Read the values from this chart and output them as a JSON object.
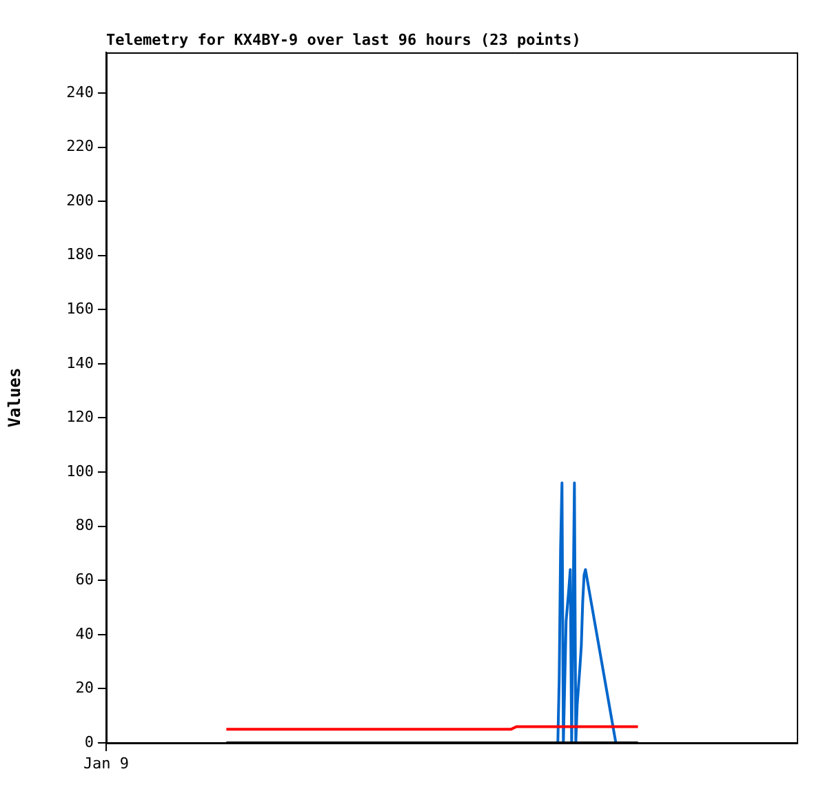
{
  "chart_data": {
    "type": "line",
    "title": "Telemetry for KX4BY-9 over last 96 hours (23 points)",
    "ylabel": "Values",
    "categories": [
      "Jan 9",
      null,
      null,
      null,
      null,
      null,
      null,
      null,
      null,
      null,
      null,
      null,
      null,
      null,
      null,
      null,
      null,
      null,
      null,
      null,
      null,
      null,
      null,
      null,
      null,
      null,
      null,
      null,
      null,
      null,
      null,
      null,
      null,
      null,
      null,
      null,
      null,
      null,
      null,
      null,
      null,
      null,
      null,
      null,
      null,
      null,
      null,
      null,
      null,
      null,
      null,
      null,
      null,
      null,
      null,
      null,
      null,
      null,
      null,
      null,
      null,
      null,
      null,
      null,
      null,
      null,
      null,
      null,
      null,
      null,
      null,
      null,
      null,
      null,
      null,
      null,
      null,
      null,
      null,
      null,
      null,
      null,
      null,
      null,
      null,
      null,
      null,
      null,
      null,
      null,
      null,
      null,
      null,
      null,
      null,
      null,
      null,
      null,
      null,
      null,
      null,
      null,
      null,
      null,
      null,
      null,
      null,
      null,
      null,
      null,
      null,
      null,
      null,
      null,
      null,
      null,
      null,
      null,
      null,
      null,
      null,
      null,
      null,
      null,
      null,
      null,
      null,
      null,
      null,
      null,
      null,
      null,
      null,
      null,
      null,
      null,
      null,
      null,
      null,
      null,
      null,
      null,
      null,
      null,
      null,
      null,
      null,
      null,
      null,
      null,
      null,
      null,
      null,
      null,
      null,
      null,
      null,
      null,
      null,
      null,
      null,
      null,
      null,
      null,
      null,
      null,
      null,
      null,
      null,
      null,
      null,
      null,
      null,
      null,
      null,
      null,
      null,
      null,
      null,
      null,
      null,
      null,
      null,
      null,
      null,
      null,
      null,
      null,
      null,
      null,
      null,
      null,
      null,
      null,
      null,
      null,
      null,
      null,
      null,
      null,
      null,
      null,
      null,
      null,
      null,
      null,
      null,
      null,
      null,
      null,
      null,
      null,
      null,
      null,
      null,
      null,
      null,
      null,
      null,
      null,
      null,
      null,
      null,
      null,
      null,
      null,
      null,
      null,
      null,
      null,
      null,
      null,
      null,
      null,
      null,
      null,
      null,
      null,
      null,
      null,
      null,
      null,
      null,
      null,
      null,
      null,
      null,
      null,
      null,
      null,
      null,
      null,
      null,
      null,
      null,
      null,
      null,
      null,
      null,
      null,
      null,
      null,
      null,
      null,
      null,
      null,
      null,
      null,
      null,
      null,
      null,
      null,
      null,
      null,
      null,
      null,
      null,
      null,
      null,
      null,
      null,
      null,
      null,
      null,
      null,
      null,
      null,
      null,
      null,
      null,
      null,
      null,
      null,
      null,
      null,
      null,
      null,
      null,
      null,
      null,
      null,
      null,
      null,
      null,
      null,
      null,
      null,
      null,
      null,
      null,
      null,
      null,
      null,
      null,
      null,
      null,
      null,
      null,
      null,
      null,
      null,
      null,
      null,
      null,
      null,
      null,
      null,
      null,
      null,
      null,
      null,
      null,
      null,
      null,
      null,
      null,
      null,
      null,
      null,
      null,
      null,
      null,
      null,
      null,
      null,
      null,
      null,
      null,
      null,
      null,
      null,
      null,
      null,
      null,
      null,
      null,
      null,
      null,
      null,
      null,
      null,
      null,
      null,
      null,
      null,
      null,
      null,
      null,
      null,
      null,
      null,
      null,
      null,
      null,
      null,
      null,
      null,
      null,
      null,
      null,
      null,
      null,
      null,
      null,
      null,
      null,
      null,
      null,
      null,
      null,
      null,
      null,
      null,
      null,
      null,
      null,
      null,
      null,
      null,
      null,
      null,
      null,
      null,
      null,
      null,
      null,
      null,
      null,
      null,
      null,
      null,
      null,
      null,
      null,
      null,
      null,
      null,
      null,
      null,
      null,
      null,
      null,
      null,
      null,
      null,
      null,
      null,
      null,
      null,
      null,
      null,
      null,
      null,
      null,
      null,
      null,
      null,
      null,
      null,
      null,
      null,
      null,
      null,
      null,
      null,
      null,
      null,
      null,
      null,
      null,
      null,
      null,
      null,
      null,
      null,
      null,
      null,
      null,
      null,
      null,
      null,
      null,
      null,
      null,
      null,
      null,
      null,
      null,
      null,
      null,
      null,
      null,
      null,
      null,
      null,
      null,
      null,
      null,
      null,
      null,
      null,
      null,
      null,
      null,
      null,
      null,
      null,
      null,
      null,
      null,
      null,
      null,
      null,
      null,
      null,
      null,
      null,
      null,
      null,
      null,
      null
    ],
    "ylim": [
      0,
      255
    ],
    "yticks": [
      0,
      20,
      40,
      60,
      80,
      100,
      120,
      140,
      160,
      180,
      200,
      220,
      240
    ],
    "grid": false,
    "legend": false,
    "marker": "none",
    "line_style": "solid",
    "series": [
      {
        "color": "#000000",
        "values": [
          null,
          null,
          null,
          null,
          null,
          null,
          null,
          null,
          null,
          null,
          null,
          null,
          null,
          null,
          null,
          null,
          null,
          null,
          null,
          null,
          null,
          null,
          null,
          null,
          null,
          null,
          null,
          null,
          null,
          null,
          null,
          null,
          null,
          null,
          null,
          null,
          null,
          null,
          null,
          null,
          null,
          null,
          null,
          null,
          null,
          null,
          null,
          null,
          null,
          null,
          null,
          null,
          null,
          null,
          null,
          null,
          null,
          null,
          null,
          null,
          null,
          null,
          null,
          null,
          null,
          null,
          null,
          null,
          null,
          null,
          null,
          null,
          null,
          null,
          null,
          null,
          null,
          null,
          null,
          null,
          null,
          null,
          null,
          null,
          null,
          null,
          null,
          0,
          null,
          null,
          null,
          null,
          null,
          null,
          null,
          null,
          null,
          null,
          null,
          null,
          null,
          null,
          null,
          null,
          null,
          null,
          null,
          null,
          null,
          null,
          null,
          null,
          null,
          null,
          null,
          null,
          null,
          null,
          null,
          null,
          null,
          null,
          null,
          null,
          null,
          null,
          null,
          null,
          null,
          null,
          null,
          null,
          null,
          null,
          null,
          null,
          null,
          null,
          null,
          null,
          null,
          null,
          null,
          null,
          null,
          null,
          null,
          null,
          null,
          null,
          null,
          null,
          null,
          null,
          null,
          null,
          null,
          null,
          null,
          null,
          null,
          null,
          null,
          null,
          null,
          null,
          null,
          null,
          null,
          null,
          null,
          null,
          null,
          null,
          null,
          null,
          null,
          null,
          null,
          null,
          null,
          null,
          null,
          null,
          null,
          null,
          null,
          null,
          null,
          null,
          null,
          null,
          null,
          null,
          null,
          null,
          null,
          null,
          null,
          null,
          null,
          null,
          null,
          null,
          null,
          null,
          null,
          null,
          null,
          null,
          null,
          null,
          null,
          null,
          null,
          null,
          null,
          null,
          null,
          null,
          null,
          null,
          null,
          null,
          null,
          null,
          null,
          null,
          null,
          null,
          null,
          null,
          null,
          null,
          null,
          null,
          null,
          null,
          null,
          null,
          null,
          null,
          null,
          null,
          null,
          null,
          null,
          null,
          null,
          null,
          null,
          null,
          null,
          null,
          null,
          null,
          null,
          null,
          null,
          null,
          null,
          null,
          null,
          null,
          null,
          null,
          null,
          null,
          null,
          null,
          null,
          null,
          null,
          null,
          null,
          null,
          null,
          null,
          null,
          null,
          null,
          null,
          null,
          null,
          null,
          null,
          null,
          null,
          null,
          null,
          null,
          null,
          null,
          null,
          null,
          null,
          null,
          null,
          null,
          null,
          null,
          null,
          null,
          null,
          null,
          null,
          null,
          null,
          null,
          null,
          null,
          null,
          null,
          null,
          null,
          null,
          null,
          null,
          null,
          null,
          null,
          null,
          null,
          null,
          null,
          null,
          null,
          null,
          null,
          null,
          null,
          null,
          null,
          null,
          null,
          null,
          null,
          null,
          null,
          null,
          null,
          null,
          null,
          null,
          null,
          null,
          null,
          null,
          null,
          null,
          null,
          null,
          null,
          null,
          null,
          null,
          null,
          null,
          null,
          null,
          null,
          null,
          null,
          null,
          null,
          null,
          null,
          null,
          null,
          null,
          null,
          null,
          null,
          null,
          null,
          null,
          null,
          null,
          null,
          null,
          null,
          null,
          null,
          null,
          null,
          0,
          null,
          null,
          null,
          null,
          null,
          null,
          null,
          null,
          null,
          null,
          null,
          null,
          null,
          null,
          null,
          null,
          null,
          null,
          null,
          null,
          null,
          null,
          null,
          null,
          null,
          null,
          null,
          null,
          null,
          null,
          null,
          null,
          null,
          null,
          null,
          null,
          null,
          null,
          null,
          null,
          null,
          null,
          null,
          null,
          null,
          null,
          null,
          null,
          null,
          null,
          null,
          null,
          null,
          null,
          null,
          null,
          null,
          null,
          null,
          null,
          null,
          null,
          null,
          null,
          null,
          null,
          null,
          null,
          null,
          null,
          null,
          null,
          null,
          null,
          null,
          null,
          null,
          null,
          null,
          null,
          null,
          null,
          null,
          null,
          null,
          null,
          null,
          null,
          null,
          null,
          null,
          null,
          null,
          null,
          null,
          null,
          null,
          null,
          null,
          null,
          null,
          null,
          null,
          null,
          null,
          null,
          null,
          null,
          null,
          null,
          null,
          null,
          null,
          null,
          null
        ]
      },
      {
        "color": "#ff0000",
        "values": [
          null,
          null,
          null,
          null,
          null,
          null,
          null,
          null,
          null,
          null,
          null,
          null,
          null,
          null,
          null,
          null,
          null,
          null,
          null,
          null,
          null,
          null,
          null,
          null,
          null,
          null,
          null,
          null,
          null,
          null,
          null,
          null,
          null,
          null,
          null,
          null,
          null,
          null,
          null,
          null,
          null,
          null,
          null,
          null,
          null,
          null,
          null,
          null,
          null,
          null,
          null,
          null,
          null,
          null,
          null,
          null,
          null,
          null,
          null,
          null,
          null,
          null,
          null,
          null,
          null,
          null,
          null,
          null,
          null,
          null,
          null,
          null,
          null,
          null,
          null,
          null,
          null,
          null,
          null,
          null,
          null,
          null,
          null,
          null,
          null,
          null,
          null,
          5,
          null,
          null,
          null,
          null,
          null,
          null,
          null,
          null,
          null,
          null,
          null,
          null,
          null,
          null,
          null,
          null,
          null,
          null,
          null,
          null,
          null,
          null,
          null,
          null,
          null,
          null,
          null,
          null,
          null,
          null,
          null,
          null,
          null,
          null,
          null,
          null,
          null,
          null,
          null,
          null,
          null,
          null,
          null,
          null,
          null,
          null,
          null,
          null,
          null,
          null,
          null,
          null,
          null,
          null,
          null,
          null,
          null,
          null,
          null,
          null,
          null,
          null,
          null,
          null,
          null,
          null,
          null,
          null,
          null,
          null,
          null,
          null,
          null,
          null,
          null,
          null,
          null,
          null,
          null,
          null,
          null,
          null,
          null,
          null,
          null,
          null,
          null,
          null,
          null,
          null,
          null,
          null,
          null,
          null,
          null,
          null,
          null,
          null,
          null,
          null,
          null,
          null,
          null,
          null,
          null,
          null,
          null,
          null,
          null,
          null,
          null,
          null,
          null,
          null,
          null,
          null,
          null,
          null,
          null,
          null,
          null,
          null,
          null,
          null,
          null,
          null,
          null,
          null,
          null,
          null,
          null,
          null,
          null,
          null,
          null,
          null,
          null,
          null,
          null,
          null,
          null,
          null,
          null,
          null,
          null,
          null,
          null,
          null,
          null,
          null,
          null,
          null,
          null,
          null,
          null,
          null,
          null,
          null,
          null,
          null,
          null,
          null,
          null,
          null,
          null,
          null,
          null,
          null,
          null,
          null,
          null,
          null,
          null,
          null,
          null,
          null,
          null,
          null,
          null,
          null,
          null,
          null,
          null,
          null,
          null,
          null,
          null,
          null,
          null,
          null,
          null,
          null,
          null,
          null,
          null,
          null,
          null,
          null,
          null,
          null,
          null,
          null,
          null,
          null,
          null,
          5,
          null,
          null,
          null,
          6,
          null,
          null,
          null,
          null,
          null,
          null,
          null,
          null,
          null,
          null,
          null,
          null,
          null,
          null,
          null,
          null,
          null,
          null,
          null,
          null,
          null,
          null,
          null,
          null,
          null,
          null,
          null,
          null,
          null,
          null,
          null,
          null,
          null,
          null,
          null,
          null,
          null,
          null,
          null,
          null,
          null,
          null,
          null,
          null,
          null,
          null,
          null,
          null,
          null,
          null,
          null,
          null,
          null,
          null,
          null,
          null,
          null,
          null,
          null,
          null,
          null,
          null,
          null,
          null,
          null,
          null,
          null,
          null,
          null,
          null,
          null,
          null,
          null,
          null,
          null,
          null,
          null,
          null,
          null,
          null,
          null,
          null,
          null,
          null,
          null,
          null,
          null,
          6,
          null,
          null,
          null,
          null,
          null,
          null,
          null,
          null,
          null,
          null,
          null,
          null,
          null,
          null,
          null,
          null,
          null,
          null,
          null,
          null,
          null,
          null,
          null,
          null,
          null,
          null,
          null,
          null,
          null,
          null,
          null,
          null,
          null,
          null,
          null,
          null,
          null,
          null,
          null,
          null,
          null,
          null,
          null,
          null,
          null,
          null,
          null,
          null,
          null,
          null,
          null,
          null,
          null,
          null,
          null,
          null,
          null,
          null,
          null,
          null,
          null,
          null,
          null,
          null,
          null,
          null,
          null,
          null,
          null,
          null,
          null,
          null,
          null,
          null,
          null,
          null,
          null,
          null,
          null,
          null,
          null,
          null,
          null,
          null,
          null,
          null,
          null,
          null,
          null,
          null,
          null,
          null,
          null,
          null,
          null,
          null,
          null,
          null,
          null,
          null,
          null,
          null,
          null,
          null,
          null,
          null,
          null,
          null,
          null,
          null,
          null,
          null,
          null,
          null,
          null
        ]
      },
      {
        "color": "#0066cc",
        "values": [
          null,
          null,
          null,
          null,
          null,
          null,
          null,
          null,
          null,
          null,
          null,
          null,
          null,
          null,
          null,
          null,
          null,
          null,
          null,
          null,
          null,
          null,
          null,
          null,
          null,
          null,
          null,
          null,
          null,
          null,
          null,
          null,
          null,
          null,
          null,
          null,
          null,
          null,
          null,
          null,
          null,
          null,
          null,
          null,
          null,
          null,
          null,
          null,
          null,
          null,
          null,
          null,
          null,
          null,
          null,
          null,
          null,
          null,
          null,
          null,
          null,
          null,
          null,
          null,
          null,
          null,
          null,
          null,
          null,
          null,
          null,
          null,
          null,
          null,
          null,
          null,
          null,
          null,
          null,
          null,
          null,
          null,
          null,
          null,
          null,
          null,
          null,
          null,
          null,
          null,
          null,
          null,
          null,
          null,
          null,
          null,
          null,
          null,
          null,
          null,
          null,
          null,
          null,
          null,
          null,
          null,
          null,
          null,
          null,
          null,
          null,
          null,
          null,
          null,
          null,
          null,
          null,
          null,
          null,
          null,
          null,
          null,
          null,
          null,
          null,
          null,
          null,
          null,
          null,
          null,
          null,
          null,
          null,
          null,
          null,
          null,
          null,
          null,
          null,
          null,
          null,
          null,
          null,
          null,
          null,
          null,
          null,
          null,
          null,
          null,
          null,
          null,
          null,
          null,
          null,
          null,
          null,
          null,
          null,
          null,
          null,
          null,
          null,
          null,
          null,
          null,
          null,
          null,
          null,
          null,
          null,
          null,
          null,
          null,
          null,
          null,
          null,
          null,
          null,
          null,
          null,
          null,
          null,
          null,
          null,
          null,
          null,
          null,
          null,
          null,
          null,
          null,
          null,
          null,
          null,
          null,
          null,
          null,
          null,
          null,
          null,
          null,
          null,
          null,
          null,
          null,
          null,
          null,
          null,
          null,
          null,
          null,
          null,
          null,
          null,
          null,
          null,
          null,
          null,
          null,
          null,
          null,
          null,
          null,
          null,
          null,
          null,
          null,
          null,
          null,
          null,
          null,
          null,
          null,
          null,
          null,
          null,
          null,
          null,
          null,
          null,
          null,
          null,
          null,
          null,
          null,
          null,
          null,
          null,
          null,
          null,
          null,
          null,
          null,
          null,
          null,
          null,
          null,
          null,
          null,
          null,
          null,
          null,
          null,
          null,
          null,
          null,
          null,
          null,
          null,
          null,
          null,
          null,
          null,
          null,
          null,
          null,
          null,
          null,
          null,
          null,
          null,
          null,
          null,
          null,
          null,
          null,
          null,
          null,
          null,
          null,
          null,
          null,
          null,
          null,
          null,
          null,
          null,
          null,
          null,
          null,
          null,
          null,
          null,
          null,
          null,
          null,
          null,
          null,
          null,
          null,
          null,
          null,
          null,
          null,
          null,
          null,
          null,
          null,
          null,
          null,
          null,
          null,
          null,
          null,
          null,
          null,
          0,
          24,
          72,
          96,
          0,
          null,
          45,
          null,
          57,
          64,
          0,
          null,
          96,
          0,
          14,
          null,
          28,
          36,
          52,
          62,
          64,
          null,
          null,
          null,
          null,
          null,
          null,
          null,
          null,
          null,
          null,
          null,
          null,
          null,
          null,
          null,
          null,
          null,
          null,
          null,
          null,
          null,
          0,
          null,
          null,
          null,
          null,
          null,
          null,
          null,
          null,
          null,
          null,
          null,
          null,
          null,
          null,
          null,
          null,
          null,
          null,
          null,
          null,
          null,
          null,
          null,
          null,
          null,
          null,
          null,
          null,
          null,
          null,
          null,
          null,
          null,
          null,
          null,
          null,
          null,
          null,
          null,
          null,
          null,
          null,
          null,
          null,
          null,
          null,
          null,
          null,
          null,
          null,
          null,
          null,
          null,
          null,
          null,
          null,
          null,
          null,
          null,
          null,
          null,
          null,
          null,
          null,
          null,
          null,
          null,
          null,
          null,
          null,
          null,
          null,
          null,
          null,
          null,
          null,
          null,
          null,
          null,
          null,
          null,
          null,
          null,
          null,
          null,
          null,
          null,
          null,
          null,
          null,
          null,
          null,
          null,
          null,
          null,
          null,
          null,
          null,
          null,
          null,
          null,
          null,
          null,
          null,
          null,
          null,
          null,
          null,
          null,
          null,
          null,
          null,
          null,
          null,
          null,
          null,
          null,
          null,
          null,
          null,
          null,
          null,
          null,
          null,
          null,
          null,
          null,
          null,
          null,
          null,
          null
        ]
      }
    ]
  }
}
